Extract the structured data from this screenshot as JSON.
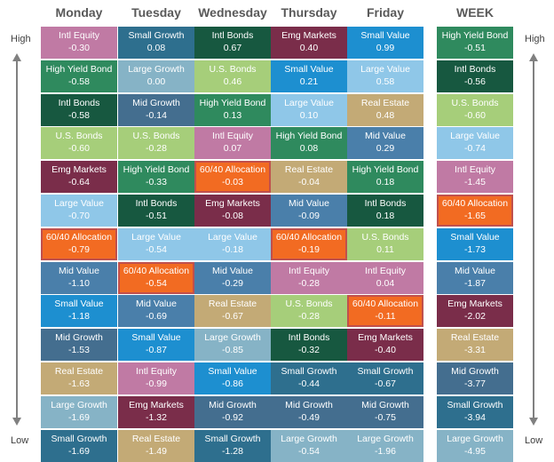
{
  "side_labels": {
    "high": "High",
    "low": "Low"
  },
  "columns": [
    "Monday",
    "Tuesday",
    "Wednesday",
    "Thursday",
    "Friday",
    "WEEK"
  ],
  "colors": {
    "Intl Equity": "#c07aa4",
    "Small Growth": "#2e6f8e",
    "Intl Bonds": "#175840",
    "Emg Markets": "#7a2d4a",
    "Small Value": "#1d8fd0",
    "High Yield Bond": "#2f8a5e",
    "Large Growth": "#86b3c6",
    "U.S. Bonds": "#a6ce7a",
    "Mid Growth": "#446e8f",
    "Large Value": "#8fc7e8",
    "Real Estate": "#c3aa76",
    "60/40 Allocation": "#f26b22",
    "Mid Value": "#4a7faa",
    "highlight_border": "#c0504d"
  },
  "chart_data": {
    "type": "table",
    "title": "",
    "columns": [
      "Monday",
      "Tuesday",
      "Wednesday",
      "Thursday",
      "Friday",
      "WEEK"
    ],
    "rows": [
      [
        {
          "name": "Intl Equity",
          "value": "-0.30"
        },
        {
          "name": "Small Growth",
          "value": "0.08"
        },
        {
          "name": "Intl Bonds",
          "value": "0.67"
        },
        {
          "name": "Emg Markets",
          "value": "0.40"
        },
        {
          "name": "Small Value",
          "value": "0.99"
        },
        {
          "name": "High Yield Bond",
          "value": "-0.51"
        }
      ],
      [
        {
          "name": "High Yield Bond",
          "value": "-0.58"
        },
        {
          "name": "Large Growth",
          "value": "0.00"
        },
        {
          "name": "U.S. Bonds",
          "value": "0.46"
        },
        {
          "name": "Small Value",
          "value": "0.21"
        },
        {
          "name": "Large Value",
          "value": "0.58"
        },
        {
          "name": "Intl Bonds",
          "value": "-0.56"
        }
      ],
      [
        {
          "name": "Intl Bonds",
          "value": "-0.58"
        },
        {
          "name": "Mid Growth",
          "value": "-0.14"
        },
        {
          "name": "High Yield Bond",
          "value": "0.13"
        },
        {
          "name": "Large Value",
          "value": "0.10"
        },
        {
          "name": "Real Estate",
          "value": "0.48"
        },
        {
          "name": "U.S. Bonds",
          "value": "-0.60"
        }
      ],
      [
        {
          "name": "U.S. Bonds",
          "value": "-0.60"
        },
        {
          "name": "U.S. Bonds",
          "value": "-0.28"
        },
        {
          "name": "Intl Equity",
          "value": "0.07"
        },
        {
          "name": "High Yield Bond",
          "value": "0.08"
        },
        {
          "name": "Mid Value",
          "value": "0.29"
        },
        {
          "name": "Large Value",
          "value": "-0.74"
        }
      ],
      [
        {
          "name": "Emg Markets",
          "value": "-0.64"
        },
        {
          "name": "High Yield Bond",
          "value": "-0.33"
        },
        {
          "name": "60/40 Allocation",
          "value": "-0.03"
        },
        {
          "name": "Real Estate",
          "value": "-0.04"
        },
        {
          "name": "High Yield Bond",
          "value": "0.18"
        },
        {
          "name": "Intl Equity",
          "value": "-1.45"
        }
      ],
      [
        {
          "name": "Large Value",
          "value": "-0.70"
        },
        {
          "name": "Intl Bonds",
          "value": "-0.51"
        },
        {
          "name": "Emg Markets",
          "value": "-0.08"
        },
        {
          "name": "Mid Value",
          "value": "-0.09"
        },
        {
          "name": "Intl Bonds",
          "value": "0.18"
        },
        {
          "name": "60/40 Allocation",
          "value": "-1.65"
        }
      ],
      [
        {
          "name": "60/40 Allocation",
          "value": "-0.79"
        },
        {
          "name": "Large Value",
          "value": "-0.54"
        },
        {
          "name": "Large Value",
          "value": "-0.18"
        },
        {
          "name": "60/40 Allocation",
          "value": "-0.19"
        },
        {
          "name": "U.S. Bonds",
          "value": "0.11"
        },
        {
          "name": "Small Value",
          "value": "-1.73"
        }
      ],
      [
        {
          "name": "Mid Value",
          "value": "-1.10"
        },
        {
          "name": "60/40 Allocation",
          "value": "-0.54"
        },
        {
          "name": "Mid Value",
          "value": "-0.29"
        },
        {
          "name": "Intl Equity",
          "value": "-0.28"
        },
        {
          "name": "Intl Equity",
          "value": "0.04"
        },
        {
          "name": "Mid Value",
          "value": "-1.87"
        }
      ],
      [
        {
          "name": "Small Value",
          "value": "-1.18"
        },
        {
          "name": "Mid Value",
          "value": "-0.69"
        },
        {
          "name": "Real Estate",
          "value": "-0.67"
        },
        {
          "name": "U.S. Bonds",
          "value": "-0.28"
        },
        {
          "name": "60/40 Allocation",
          "value": "-0.11"
        },
        {
          "name": "Emg Markets",
          "value": "-2.02"
        }
      ],
      [
        {
          "name": "Mid Growth",
          "value": "-1.53"
        },
        {
          "name": "Small Value",
          "value": "-0.87"
        },
        {
          "name": "Large Growth",
          "value": "-0.85"
        },
        {
          "name": "Intl Bonds",
          "value": "-0.32"
        },
        {
          "name": "Emg Markets",
          "value": "-0.40"
        },
        {
          "name": "Real Estate",
          "value": "-3.31"
        }
      ],
      [
        {
          "name": "Real Estate",
          "value": "-1.63"
        },
        {
          "name": "Intl Equity",
          "value": "-0.99"
        },
        {
          "name": "Small Value",
          "value": "-0.86"
        },
        {
          "name": "Small Growth",
          "value": "-0.44"
        },
        {
          "name": "Small Growth",
          "value": "-0.67"
        },
        {
          "name": "Mid Growth",
          "value": "-3.77"
        }
      ],
      [
        {
          "name": "Large Growth",
          "value": "-1.69"
        },
        {
          "name": "Emg Markets",
          "value": "-1.32"
        },
        {
          "name": "Mid Growth",
          "value": "-0.92"
        },
        {
          "name": "Mid Growth",
          "value": "-0.49"
        },
        {
          "name": "Mid Growth",
          "value": "-0.75"
        },
        {
          "name": "Small Growth",
          "value": "-3.94"
        }
      ],
      [
        {
          "name": "Small Growth",
          "value": "-1.69"
        },
        {
          "name": "Real Estate",
          "value": "-1.49"
        },
        {
          "name": "Small Growth",
          "value": "-1.28"
        },
        {
          "name": "Large Growth",
          "value": "-0.54"
        },
        {
          "name": "Large Growth",
          "value": "-1.96"
        },
        {
          "name": "Large Growth",
          "value": "-4.95"
        }
      ]
    ]
  }
}
